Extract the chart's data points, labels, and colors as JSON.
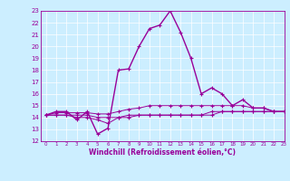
{
  "xlabel": "Windchill (Refroidissement éolien,°C)",
  "bg_color": "#cceeff",
  "line_color": "#990099",
  "grid_color": "#aaddcc",
  "xmin": -0.5,
  "xmax": 23,
  "ymin": 12,
  "ymax": 23,
  "xticks": [
    0,
    1,
    2,
    3,
    4,
    5,
    6,
    7,
    8,
    9,
    10,
    11,
    12,
    13,
    14,
    15,
    16,
    17,
    18,
    19,
    20,
    21,
    22,
    23
  ],
  "yticks": [
    12,
    13,
    14,
    15,
    16,
    17,
    18,
    19,
    20,
    21,
    22,
    23
  ],
  "series": [
    [
      14.2,
      14.5,
      14.5,
      13.8,
      14.5,
      12.6,
      13.1,
      18.0,
      18.1,
      20.0,
      21.5,
      21.8,
      23.0,
      21.2,
      19.0,
      16.0,
      16.5,
      16.0,
      15.0,
      15.5,
      14.8,
      14.8,
      14.5,
      14.5
    ],
    [
      14.2,
      14.4,
      14.4,
      14.4,
      14.4,
      14.3,
      14.3,
      14.5,
      14.7,
      14.8,
      15.0,
      15.0,
      15.0,
      15.0,
      15.0,
      15.0,
      15.0,
      15.0,
      15.0,
      15.0,
      14.8,
      14.8,
      14.5,
      14.5
    ],
    [
      14.2,
      14.2,
      14.2,
      14.2,
      14.2,
      14.0,
      14.0,
      14.0,
      14.2,
      14.2,
      14.2,
      14.2,
      14.2,
      14.2,
      14.2,
      14.2,
      14.5,
      14.5,
      14.5,
      14.5,
      14.5,
      14.5,
      14.5,
      14.5
    ],
    [
      14.2,
      14.2,
      14.2,
      14.0,
      14.0,
      13.8,
      13.5,
      14.0,
      14.0,
      14.2,
      14.2,
      14.2,
      14.2,
      14.2,
      14.2,
      14.2,
      14.2,
      14.5,
      14.5,
      14.5,
      14.5,
      14.5,
      14.5,
      14.5
    ]
  ]
}
